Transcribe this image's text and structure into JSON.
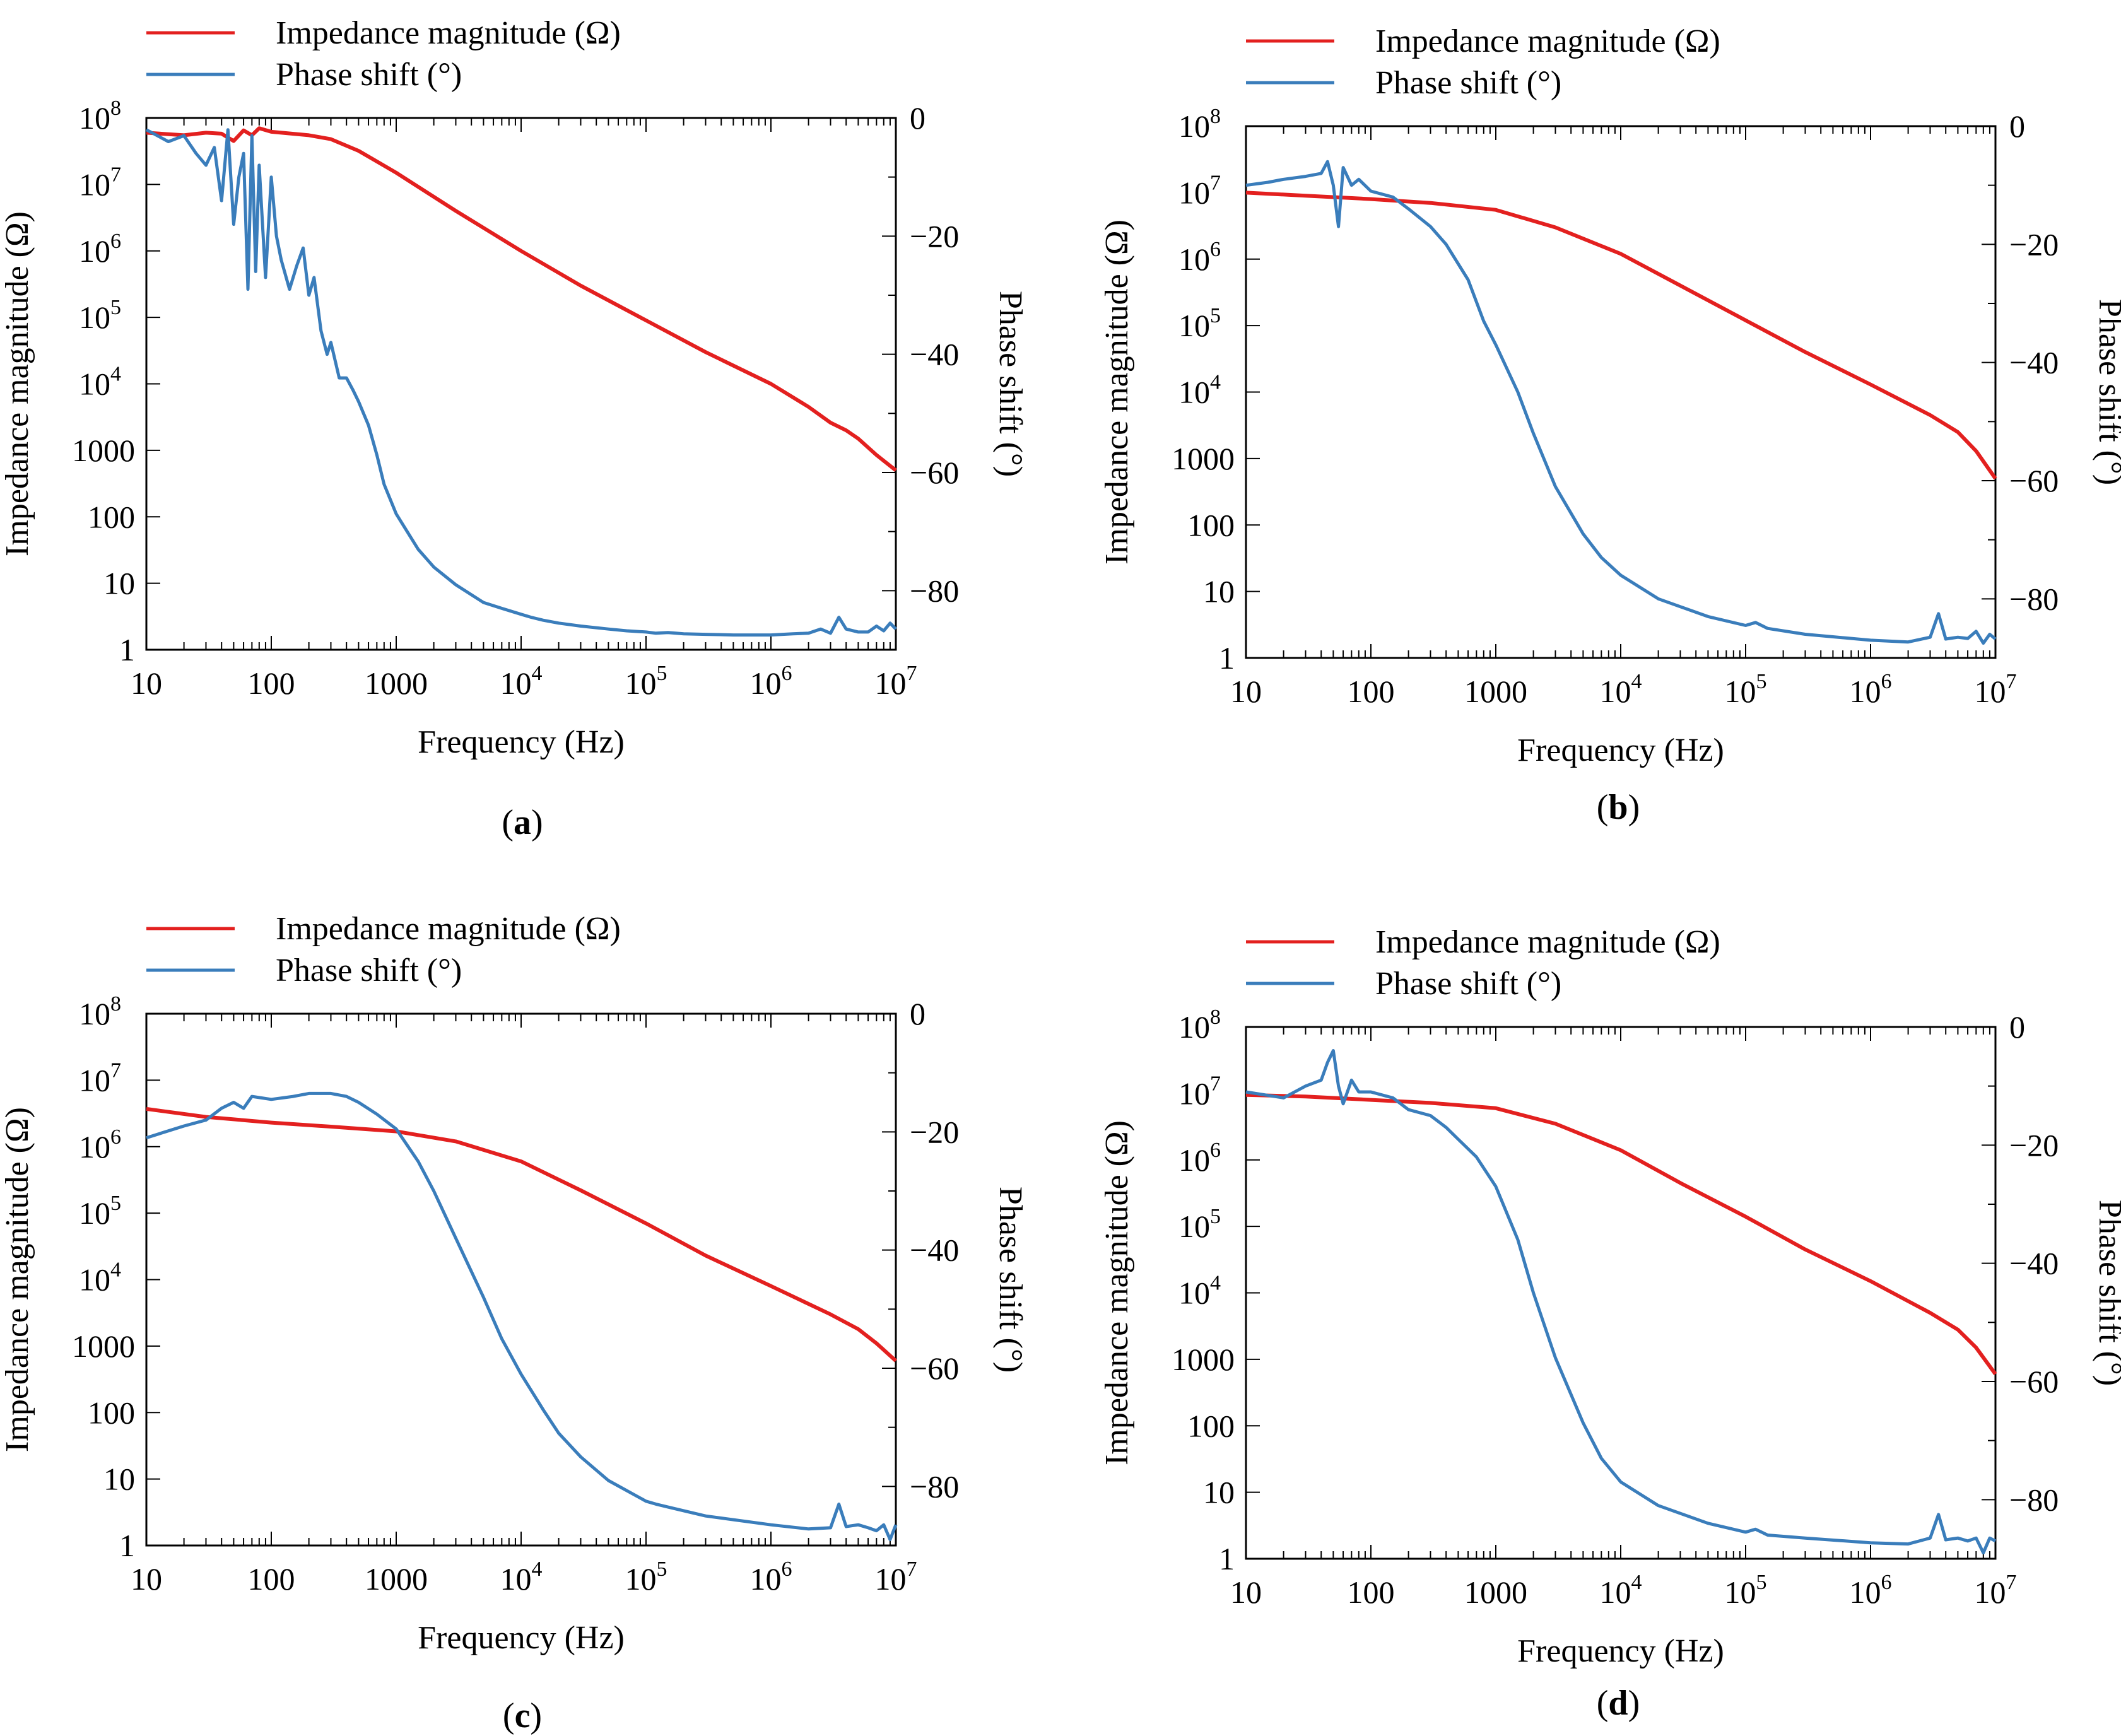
{
  "figure": {
    "panels": [
      {
        "id": "a",
        "label_open": "(",
        "label_letter": "a",
        "label_close": ")"
      },
      {
        "id": "b",
        "label_open": "(",
        "label_letter": "b",
        "label_close": ")"
      },
      {
        "id": "c",
        "label_open": "(",
        "label_letter": "c",
        "label_close": ")"
      },
      {
        "id": "d",
        "label_open": "(",
        "label_letter": "d",
        "label_close": ")"
      }
    ]
  },
  "colors": {
    "impedance": "#e3201f",
    "phase": "#3a7dbb"
  },
  "chart_data": [
    {
      "panel": "a",
      "type": "line",
      "title": "",
      "xlabel": "Frequency (Hz)",
      "ylabel_left": "Impedance magnitude (Ω)",
      "ylabel_right": "Phase shift (°)",
      "x_scale": "log",
      "xlim": [
        10,
        10000000
      ],
      "y_left_scale": "log",
      "y_left_lim": [
        1,
        100000000
      ],
      "y_right_lim": [
        -90,
        0
      ],
      "x_ticks": [
        [
          "10",
          "",
          1
        ],
        [
          "100",
          "",
          2
        ],
        [
          "1000",
          "",
          3
        ],
        [
          "10",
          "4",
          4
        ],
        [
          "10",
          "5",
          5
        ],
        [
          "10",
          "6",
          6
        ],
        [
          "10",
          "7",
          7
        ]
      ],
      "y_left_ticks": [
        [
          "1",
          "",
          0
        ],
        [
          "10",
          "",
          1
        ],
        [
          "100",
          "",
          2
        ],
        [
          "1000",
          "",
          3
        ],
        [
          "10",
          "4",
          4
        ],
        [
          "10",
          "5",
          5
        ],
        [
          "10",
          "6",
          6
        ],
        [
          "10",
          "7",
          7
        ],
        [
          "10",
          "8",
          8
        ]
      ],
      "y_right_ticks": [
        [
          "0",
          0
        ],
        [
          "−20",
          -20
        ],
        [
          "−40",
          -40
        ],
        [
          "−60",
          -60
        ],
        [
          "−80",
          -80
        ]
      ],
      "legend": [
        "Impedance magnitude (Ω)",
        "Phase shift (°)"
      ],
      "series": [
        {
          "name": "Impedance magnitude (Ω)",
          "axis": "left",
          "color": "#e3201f",
          "x": [
            10,
            20,
            30,
            40,
            50,
            60,
            70,
            80,
            100,
            200,
            300,
            500,
            1000,
            3000,
            10000,
            30000,
            100000,
            300000,
            1000000,
            2000000,
            3000000,
            4000000,
            5000000,
            7000000,
            10000000
          ],
          "y": [
            60000000,
            55000000,
            60000000,
            58000000,
            45000000,
            65000000,
            55000000,
            70000000,
            62000000,
            55000000,
            48000000,
            32000000,
            15000000,
            4000000,
            1000000,
            300000,
            90000,
            30000,
            10000,
            4500,
            2600,
            2000,
            1500,
            850,
            500
          ]
        },
        {
          "name": "Phase shift (°)",
          "axis": "right",
          "color": "#3a7dbb",
          "x": [
            10,
            15,
            20,
            25,
            30,
            35,
            40,
            45,
            50,
            55,
            60,
            65,
            70,
            75,
            80,
            90,
            100,
            110,
            120,
            140,
            160,
            180,
            200,
            220,
            250,
            280,
            300,
            350,
            400,
            450,
            500,
            600,
            700,
            800,
            1000,
            1500,
            2000,
            3000,
            5000,
            7000,
            10000,
            12000,
            15000,
            20000,
            30000,
            50000,
            70000,
            100000,
            120000,
            150000,
            200000,
            300000,
            500000,
            1000000,
            1500000,
            2000000,
            2500000,
            3000000,
            3500000,
            4000000,
            5000000,
            6000000,
            7000000,
            8000000,
            9000000,
            10000000
          ],
          "y": [
            -2,
            -4,
            -3,
            -6,
            -8,
            -5,
            -14,
            -2,
            -18,
            -10,
            -6,
            -29,
            -3,
            -26,
            -8,
            -27,
            -10,
            -20,
            -24,
            -29,
            -25,
            -22,
            -30,
            -27,
            -36,
            -40,
            -38,
            -44,
            -44,
            -46,
            -48,
            -52,
            -57,
            -62,
            -67,
            -73,
            -76,
            -79,
            -82,
            -83,
            -84,
            -84.5,
            -85,
            -85.5,
            -86,
            -86.5,
            -86.8,
            -87,
            -87.2,
            -87.1,
            -87.3,
            -87.4,
            -87.5,
            -87.5,
            -87.3,
            -87.2,
            -86.5,
            -87.2,
            -84.5,
            -86.5,
            -87,
            -87,
            -86,
            -86.8,
            -85.5,
            -86.5
          ]
        }
      ]
    },
    {
      "panel": "b",
      "type": "line",
      "title": "",
      "xlabel": "Frequency (Hz)",
      "ylabel_left": "Impedance magnitude (Ω)",
      "ylabel_right": "Phase shift (°)",
      "x_scale": "log",
      "xlim": [
        10,
        10000000
      ],
      "y_left_scale": "log",
      "y_left_lim": [
        1,
        100000000
      ],
      "y_right_lim": [
        -90,
        0
      ],
      "x_ticks": [
        [
          "10",
          "",
          1
        ],
        [
          "100",
          "",
          2
        ],
        [
          "1000",
          "",
          3
        ],
        [
          "10",
          "4",
          4
        ],
        [
          "10",
          "5",
          5
        ],
        [
          "10",
          "6",
          6
        ],
        [
          "10",
          "7",
          7
        ]
      ],
      "y_left_ticks": [
        [
          "1",
          "",
          0
        ],
        [
          "10",
          "",
          1
        ],
        [
          "100",
          "",
          2
        ],
        [
          "1000",
          "",
          3
        ],
        [
          "10",
          "4",
          4
        ],
        [
          "10",
          "5",
          5
        ],
        [
          "10",
          "6",
          6
        ],
        [
          "10",
          "7",
          7
        ],
        [
          "10",
          "8",
          8
        ]
      ],
      "y_right_ticks": [
        [
          "0",
          0
        ],
        [
          "−20",
          -20
        ],
        [
          "−40",
          -40
        ],
        [
          "−60",
          -60
        ],
        [
          "−80",
          -80
        ]
      ],
      "legend": [
        "Impedance magnitude (Ω)",
        "Phase shift (°)"
      ],
      "series": [
        {
          "name": "Impedance magnitude (Ω)",
          "axis": "left",
          "color": "#e3201f",
          "x": [
            10,
            30,
            100,
            300,
            1000,
            3000,
            10000,
            30000,
            100000,
            300000,
            1000000,
            3000000,
            5000000,
            7000000,
            10000000
          ],
          "y": [
            10000000,
            9000000,
            8000000,
            7000000,
            5500000,
            3000000,
            1200000,
            400000,
            120000,
            40000,
            13000,
            4500,
            2500,
            1300,
            500
          ]
        },
        {
          "name": "Phase shift (°)",
          "axis": "right",
          "color": "#3a7dbb",
          "x": [
            10,
            15,
            20,
            30,
            40,
            45,
            50,
            55,
            60,
            70,
            80,
            100,
            150,
            200,
            300,
            400,
            600,
            800,
            1000,
            1500,
            2000,
            3000,
            5000,
            7000,
            10000,
            20000,
            50000,
            100000,
            120000,
            150000,
            300000,
            1000000,
            2000000,
            3000000,
            3500000,
            4000000,
            5000000,
            6000000,
            7000000,
            8000000,
            9000000,
            10000000
          ],
          "y": [
            -10,
            -9.5,
            -9,
            -8.5,
            -8,
            -6,
            -10,
            -17,
            -7,
            -10,
            -9,
            -11,
            -12,
            -14,
            -17,
            -20,
            -26,
            -33,
            -37,
            -45,
            -52,
            -61,
            -69,
            -73,
            -76,
            -80,
            -83,
            -84.5,
            -84,
            -85,
            -86,
            -87,
            -87.3,
            -86.5,
            -82.5,
            -86.8,
            -86.5,
            -86.7,
            -85.5,
            -87.5,
            -86,
            -86.8
          ]
        }
      ]
    },
    {
      "panel": "c",
      "type": "line",
      "title": "",
      "xlabel": "Frequency (Hz)",
      "ylabel_left": "Impedance magnitude (Ω)",
      "ylabel_right": "Phase shift (°)",
      "x_scale": "log",
      "xlim": [
        10,
        10000000
      ],
      "y_left_scale": "log",
      "y_left_lim": [
        1,
        100000000
      ],
      "y_right_lim": [
        -90,
        0
      ],
      "x_ticks": [
        [
          "10",
          "",
          1
        ],
        [
          "100",
          "",
          2
        ],
        [
          "1000",
          "",
          3
        ],
        [
          "10",
          "4",
          4
        ],
        [
          "10",
          "5",
          5
        ],
        [
          "10",
          "6",
          6
        ],
        [
          "10",
          "7",
          7
        ]
      ],
      "y_left_ticks": [
        [
          "1",
          "",
          0
        ],
        [
          "10",
          "",
          1
        ],
        [
          "100",
          "",
          2
        ],
        [
          "1000",
          "",
          3
        ],
        [
          "10",
          "4",
          4
        ],
        [
          "10",
          "5",
          5
        ],
        [
          "10",
          "6",
          6
        ],
        [
          "10",
          "7",
          7
        ],
        [
          "10",
          "8",
          8
        ]
      ],
      "y_right_ticks": [
        [
          "0",
          0
        ],
        [
          "−20",
          -20
        ],
        [
          "−40",
          -40
        ],
        [
          "−60",
          -60
        ],
        [
          "−80",
          -80
        ]
      ],
      "legend": [
        "Impedance magnitude (Ω)",
        "Phase shift (°)"
      ],
      "series": [
        {
          "name": "Impedance magnitude (Ω)",
          "axis": "left",
          "color": "#e3201f",
          "x": [
            10,
            30,
            100,
            300,
            1000,
            3000,
            10000,
            30000,
            100000,
            300000,
            1000000,
            3000000,
            5000000,
            7000000,
            10000000
          ],
          "y": [
            3700000,
            2800000,
            2300000,
            2000000,
            1700000,
            1200000,
            600000,
            220000,
            70000,
            23000,
            8000,
            3000,
            1800,
            1100,
            600
          ]
        },
        {
          "name": "Phase shift (°)",
          "axis": "right",
          "color": "#3a7dbb",
          "x": [
            10,
            20,
            30,
            40,
            50,
            60,
            70,
            100,
            150,
            200,
            250,
            300,
            400,
            500,
            700,
            1000,
            1500,
            2000,
            3000,
            5000,
            7000,
            10000,
            15000,
            20000,
            30000,
            50000,
            100000,
            120000,
            150000,
            300000,
            1000000,
            2000000,
            3000000,
            3500000,
            4000000,
            5000000,
            6000000,
            7000000,
            8000000,
            9000000,
            10000000
          ],
          "y": [
            -21,
            -19,
            -18,
            -16,
            -15,
            -16,
            -14,
            -14.5,
            -14,
            -13.5,
            -13.5,
            -13.5,
            -14,
            -15,
            -17,
            -19.5,
            -25,
            -30,
            -38,
            -48,
            -55,
            -61,
            -67,
            -71,
            -75,
            -79,
            -82.5,
            -83,
            -83.5,
            -85,
            -86.5,
            -87.2,
            -87,
            -83,
            -86.8,
            -86.5,
            -87,
            -87.5,
            -86.5,
            -89,
            -86.5
          ]
        }
      ]
    },
    {
      "panel": "d",
      "type": "line",
      "title": "",
      "xlabel": "Frequency (Hz)",
      "ylabel_left": "Impedance magnitude (Ω)",
      "ylabel_right": "Phase shift (°)",
      "x_scale": "log",
      "xlim": [
        10,
        10000000
      ],
      "y_left_scale": "log",
      "y_left_lim": [
        1,
        100000000
      ],
      "y_right_lim": [
        -90,
        0
      ],
      "x_ticks": [
        [
          "10",
          "",
          1
        ],
        [
          "100",
          "",
          2
        ],
        [
          "1000",
          "",
          3
        ],
        [
          "10",
          "4",
          4
        ],
        [
          "10",
          "5",
          5
        ],
        [
          "10",
          "6",
          6
        ],
        [
          "10",
          "7",
          7
        ]
      ],
      "y_left_ticks": [
        [
          "1",
          "",
          0
        ],
        [
          "10",
          "",
          1
        ],
        [
          "100",
          "",
          2
        ],
        [
          "1000",
          "",
          3
        ],
        [
          "10",
          "4",
          4
        ],
        [
          "10",
          "5",
          5
        ],
        [
          "10",
          "6",
          6
        ],
        [
          "10",
          "7",
          7
        ],
        [
          "10",
          "8",
          8
        ]
      ],
      "y_right_ticks": [
        [
          "0",
          0
        ],
        [
          "−20",
          -20
        ],
        [
          "−40",
          -40
        ],
        [
          "−60",
          -60
        ],
        [
          "−80",
          -80
        ]
      ],
      "legend": [
        "Impedance magnitude (Ω)",
        "Phase shift (°)"
      ],
      "series": [
        {
          "name": "Impedance magnitude (Ω)",
          "axis": "left",
          "color": "#e3201f",
          "x": [
            10,
            30,
            100,
            300,
            1000,
            3000,
            10000,
            30000,
            100000,
            300000,
            1000000,
            3000000,
            5000000,
            7000000,
            10000000
          ],
          "y": [
            9500000,
            9000000,
            8000000,
            7200000,
            6000000,
            3500000,
            1400000,
            450000,
            140000,
            45000,
            15000,
            5000,
            2800,
            1500,
            600
          ]
        },
        {
          "name": "Phase shift (°)",
          "axis": "right",
          "color": "#3a7dbb",
          "x": [
            10,
            20,
            30,
            40,
            45,
            50,
            55,
            60,
            70,
            80,
            100,
            150,
            200,
            300,
            400,
            500,
            700,
            1000,
            1500,
            2000,
            3000,
            5000,
            7000,
            10000,
            20000,
            50000,
            100000,
            120000,
            150000,
            300000,
            1000000,
            2000000,
            3000000,
            3500000,
            4000000,
            5000000,
            6000000,
            7000000,
            8000000,
            9000000,
            10000000
          ],
          "y": [
            -11,
            -12,
            -10,
            -9,
            -6,
            -4,
            -10,
            -13,
            -9,
            -11,
            -11,
            -12,
            -14,
            -15,
            -17,
            -19,
            -22,
            -27,
            -36,
            -45,
            -56,
            -67,
            -73,
            -77,
            -81,
            -84,
            -85.5,
            -85,
            -86,
            -86.5,
            -87.3,
            -87.5,
            -86.5,
            -82.5,
            -86.8,
            -86.5,
            -87,
            -86.5,
            -89,
            -86.5,
            -87
          ]
        }
      ]
    }
  ]
}
